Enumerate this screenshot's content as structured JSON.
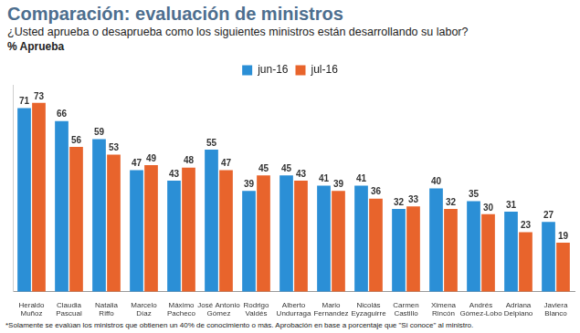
{
  "chart_data": {
    "type": "bar",
    "title": "Comparación: evaluación de ministros",
    "subtitle": "¿Usted aprueba o desaprueba como los siguientes ministros están desarrollando su labor?",
    "y_label": "% Aprueba",
    "footnote": "*Solamente se evalúan los ministros que obtienen un 40% de conocimiento o más. Aprobación en base a porcentaje que \"Si conoce\" al ministro.",
    "categories": [
      "Heraldo Muñoz",
      "Claudia Pascual",
      "Natalia Riffo",
      "Marcelo Díaz",
      "Máximo Pacheco",
      "José Antonio Gómez",
      "Rodrigo Valdés",
      "Alberto Undurraga",
      "Mario Fernandez",
      "Nicolás Eyzaguirre",
      "Carmen Castillo",
      "Ximena Rincón",
      "Andrés Gómez-Lobo",
      "Adriana Delpiano",
      "Javiera Blanco"
    ],
    "series": [
      {
        "name": "jun-16",
        "color": "#2b8fd6",
        "values": [
          71,
          66,
          59,
          47,
          43,
          55,
          39,
          45,
          41,
          41,
          32,
          40,
          35,
          31,
          27
        ]
      },
      {
        "name": "jul-16",
        "color": "#e8642c",
        "values": [
          73,
          56,
          53,
          49,
          48,
          47,
          45,
          43,
          39,
          36,
          33,
          32,
          30,
          23,
          19
        ]
      }
    ],
    "ylim": [
      0,
      80
    ],
    "grid": false,
    "legend": "top",
    "data_labels": true,
    "tick_labels": "x"
  }
}
